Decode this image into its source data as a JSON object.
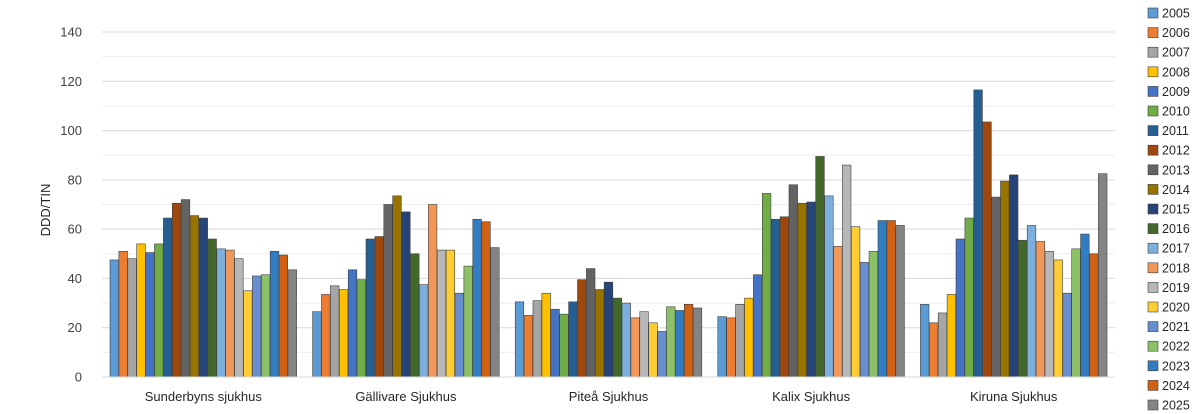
{
  "chart_data": {
    "type": "bar",
    "ylabel": "DDD/TIN",
    "ylim": [
      0,
      140
    ],
    "yticks": [
      0,
      20,
      40,
      60,
      80,
      100,
      120,
      140
    ],
    "grid": true,
    "legend_position": "right",
    "categories": [
      "Sunderbyns sjukhus",
      "Gällivare Sjukhus",
      "Piteå  Sjukhus",
      "Kalix Sjukhus",
      "Kiruna Sjukhus"
    ],
    "series": [
      {
        "name": "2005",
        "color": "#5b9bd5",
        "values": [
          47.5,
          26.5,
          30.5,
          24.5,
          29.5
        ]
      },
      {
        "name": "2006",
        "color": "#ed7d31",
        "values": [
          51,
          33.5,
          25,
          24,
          22
        ]
      },
      {
        "name": "2007",
        "color": "#a5a5a5",
        "values": [
          48,
          37,
          31,
          29.5,
          26
        ]
      },
      {
        "name": "2008",
        "color": "#ffc000",
        "values": [
          54,
          35.5,
          34,
          32,
          33.5
        ]
      },
      {
        "name": "2009",
        "color": "#4472c4",
        "values": [
          50.5,
          43.5,
          27.5,
          41.5,
          56
        ]
      },
      {
        "name": "2010",
        "color": "#70ad47",
        "values": [
          54,
          39.5,
          25.5,
          74.5,
          64.5
        ]
      },
      {
        "name": "2011",
        "color": "#255e91",
        "values": [
          64.5,
          56,
          30.5,
          64,
          116.5
        ]
      },
      {
        "name": "2012",
        "color": "#9e480e",
        "values": [
          70.5,
          57,
          39.5,
          65,
          103.5
        ]
      },
      {
        "name": "2013",
        "color": "#636363",
        "values": [
          72,
          70,
          44,
          78,
          73
        ]
      },
      {
        "name": "2014",
        "color": "#997300",
        "values": [
          65.5,
          73.5,
          35.5,
          70.5,
          79.5
        ]
      },
      {
        "name": "2015",
        "color": "#264478",
        "values": [
          64.5,
          67,
          38.5,
          71,
          82
        ]
      },
      {
        "name": "2016",
        "color": "#43682b",
        "values": [
          56,
          50,
          32,
          89.5,
          55.5
        ]
      },
      {
        "name": "2017",
        "color": "#7cafdd",
        "values": [
          52,
          37.5,
          30,
          73.5,
          61.5
        ]
      },
      {
        "name": "2018",
        "color": "#f1975a",
        "values": [
          51.5,
          70,
          24,
          53,
          55
        ]
      },
      {
        "name": "2019",
        "color": "#b7b7b7",
        "values": [
          48,
          51.5,
          26.5,
          86,
          51
        ]
      },
      {
        "name": "2020",
        "color": "#ffcd33",
        "values": [
          35,
          51.5,
          22,
          61,
          47.5
        ]
      },
      {
        "name": "2021",
        "color": "#698ed0",
        "values": [
          41,
          34,
          18.5,
          46.5,
          34
        ]
      },
      {
        "name": "2022",
        "color": "#8cc168",
        "values": [
          41.5,
          45,
          28.5,
          51,
          52
        ]
      },
      {
        "name": "2023",
        "color": "#327dc2",
        "values": [
          51,
          64,
          27,
          63.5,
          58
        ]
      },
      {
        "name": "2024",
        "color": "#d26012",
        "values": [
          49.5,
          63,
          29.5,
          63.5,
          50
        ]
      },
      {
        "name": "2025",
        "color": "#848484",
        "values": [
          43.5,
          52.5,
          28,
          61.5,
          82.5
        ]
      }
    ]
  }
}
